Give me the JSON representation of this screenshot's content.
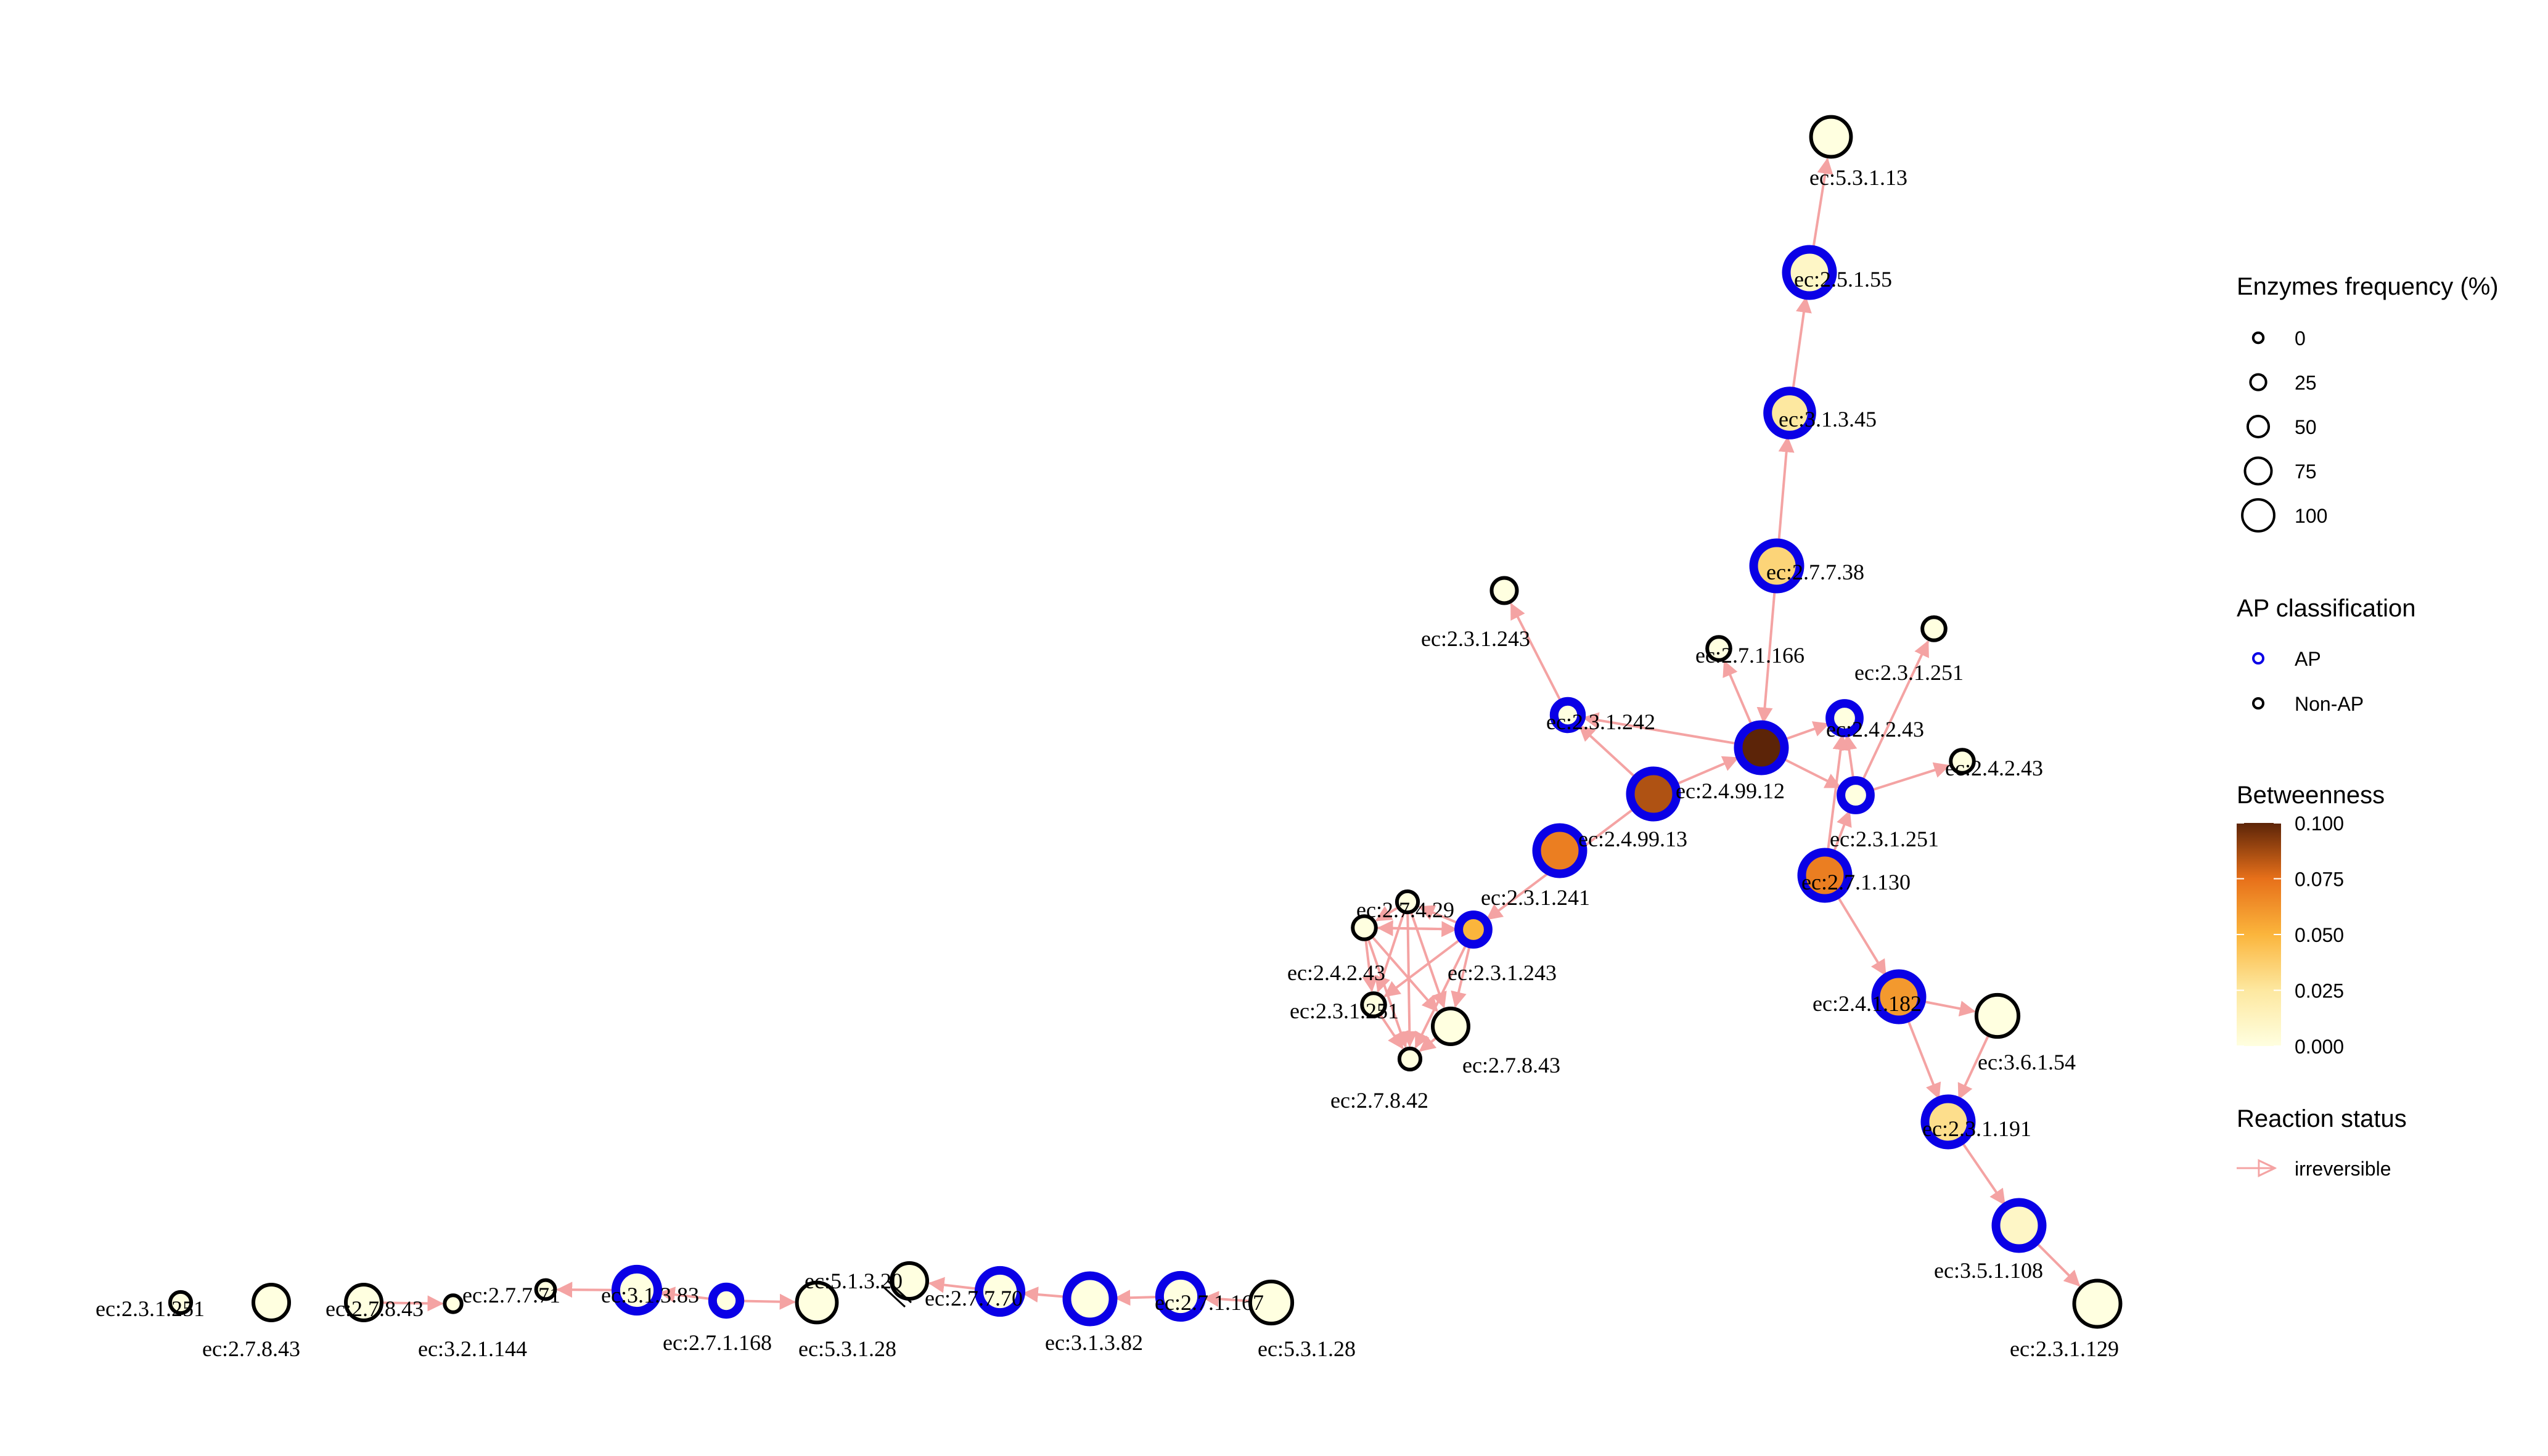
{
  "colors": {
    "edge": "#f4a3a3",
    "ap_border": "#0a00e6",
    "non_ap_border": "#000000",
    "betweenness_low": "#ffffe0",
    "betweenness_mid1": "#fde8a0",
    "betweenness_mid2": "#fbb53c",
    "betweenness_mid3": "#e7701a",
    "betweenness_high": "#5c2408"
  },
  "graph": {
    "nodes": [
      {
        "id": "n01",
        "label": "ec:5.3.1.13",
        "ap": false,
        "freq": 60,
        "betweenness": 0.0
      },
      {
        "id": "n02",
        "label": "ec:2.5.1.55",
        "ap": true,
        "freq": 75,
        "betweenness": 0.01
      },
      {
        "id": "n03",
        "label": "ec:3.1.3.45",
        "ap": true,
        "freq": 70,
        "betweenness": 0.025
      },
      {
        "id": "n04",
        "label": "ec:2.7.7.38",
        "ap": true,
        "freq": 75,
        "betweenness": 0.035
      },
      {
        "id": "n05",
        "label": "ec:2.3.1.243",
        "ap": false,
        "freq": 25,
        "betweenness": 0.0
      },
      {
        "id": "n06",
        "label": "ec:2.7.1.166",
        "ap": false,
        "freq": 20,
        "betweenness": 0.0
      },
      {
        "id": "n07",
        "label": "ec:2.3.1.251",
        "ap": false,
        "freq": 20,
        "betweenness": 0.0
      },
      {
        "id": "n08",
        "label": "ec:2.3.1.242",
        "ap": true,
        "freq": 30,
        "betweenness": 0.0
      },
      {
        "id": "n09",
        "label": "ec:2.4.2.43",
        "ap": true,
        "freq": 35,
        "betweenness": 0.0
      },
      {
        "id": "n10",
        "label": "ec:2.4.99.12",
        "ap": true,
        "freq": 75,
        "betweenness": 0.1
      },
      {
        "id": "n11",
        "label": "ec:2.4.2.43",
        "ap": false,
        "freq": 20,
        "betweenness": 0.0
      },
      {
        "id": "n12",
        "label": "ec:2.4.99.13",
        "ap": true,
        "freq": 75,
        "betweenness": 0.085
      },
      {
        "id": "n13",
        "label": "ec:2.3.1.251",
        "ap": true,
        "freq": 35,
        "betweenness": 0.0
      },
      {
        "id": "n14",
        "label": "ec:2.7.1.130",
        "ap": true,
        "freq": 75,
        "betweenness": 0.07
      },
      {
        "id": "n15",
        "label": "ec:2.3.1.241",
        "ap": true,
        "freq": 75,
        "betweenness": 0.07
      },
      {
        "id": "n16",
        "label": "ec:2.7.4.29",
        "ap": false,
        "freq": 15,
        "betweenness": 0.0
      },
      {
        "id": "n17",
        "label": "ec:2.4.2.43",
        "ap": false,
        "freq": 20,
        "betweenness": 0.0
      },
      {
        "id": "n18",
        "label": "ec:2.3.1.243",
        "ap": true,
        "freq": 35,
        "betweenness": 0.05
      },
      {
        "id": "n19",
        "label": "ec:2.3.1.251",
        "ap": false,
        "freq": 20,
        "betweenness": 0.0
      },
      {
        "id": "n20",
        "label": "ec:2.7.8.43",
        "ap": false,
        "freq": 50,
        "betweenness": 0.0
      },
      {
        "id": "n21",
        "label": "ec:2.7.8.42",
        "ap": false,
        "freq": 15,
        "betweenness": 0.0
      },
      {
        "id": "n22",
        "label": "ec:2.4.1.182",
        "ap": true,
        "freq": 75,
        "betweenness": 0.06
      },
      {
        "id": "n23",
        "label": "ec:3.6.1.54",
        "ap": false,
        "freq": 65,
        "betweenness": 0.0
      },
      {
        "id": "n24",
        "label": "ec:2.3.1.191",
        "ap": true,
        "freq": 75,
        "betweenness": 0.03
      },
      {
        "id": "n25",
        "label": "ec:3.5.1.108",
        "ap": true,
        "freq": 75,
        "betweenness": 0.01
      },
      {
        "id": "n26",
        "label": "ec:2.3.1.129",
        "ap": false,
        "freq": 75,
        "betweenness": 0.0
      },
      {
        "id": "n27",
        "label": "ec:2.3.1.251",
        "ap": false,
        "freq": 15,
        "betweenness": 0.0
      },
      {
        "id": "n28",
        "label": "ec:2.7.8.43",
        "ap": false,
        "freq": 50,
        "betweenness": 0.0
      },
      {
        "id": "n29",
        "label": "ec:2.7.8.43",
        "ap": false,
        "freq": 50,
        "betweenness": 0.0
      },
      {
        "id": "n30",
        "label": "ec:3.2.1.144",
        "ap": false,
        "freq": 5,
        "betweenness": 0.0
      },
      {
        "id": "n31",
        "label": "ec:2.7.7.71",
        "ap": false,
        "freq": 10,
        "betweenness": 0.0
      },
      {
        "id": "n32",
        "label": "ec:3.1.3.83",
        "ap": true,
        "freq": 65,
        "betweenness": 0.0
      },
      {
        "id": "n33",
        "label": "ec:2.7.1.168",
        "ap": true,
        "freq": 30,
        "betweenness": 0.0
      },
      {
        "id": "n34",
        "label": "ec:5.3.1.28",
        "ap": false,
        "freq": 60,
        "betweenness": 0.0
      },
      {
        "id": "n35",
        "label": "ec:5.1.3.20",
        "ap": false,
        "freq": 50,
        "betweenness": 0.0
      },
      {
        "id": "n36",
        "label": "ec:2.7.7.70",
        "ap": true,
        "freq": 65,
        "betweenness": 0.0
      },
      {
        "id": "n37",
        "label": "ec:3.1.3.82",
        "ap": true,
        "freq": 75,
        "betweenness": 0.0
      },
      {
        "id": "n38",
        "label": "ec:2.7.1.167",
        "ap": true,
        "freq": 65,
        "betweenness": 0.0
      },
      {
        "id": "n39",
        "label": "ec:5.3.1.28",
        "ap": false,
        "freq": 65,
        "betweenness": 0.0
      }
    ],
    "edges": [
      {
        "from": "n02",
        "to": "n01"
      },
      {
        "from": "n03",
        "to": "n02"
      },
      {
        "from": "n04",
        "to": "n03"
      },
      {
        "from": "n04",
        "to": "n10"
      },
      {
        "from": "n10",
        "to": "n06"
      },
      {
        "from": "n10",
        "to": "n09"
      },
      {
        "from": "n10",
        "to": "n08"
      },
      {
        "from": "n10",
        "to": "n13"
      },
      {
        "from": "n13",
        "to": "n07"
      },
      {
        "from": "n13",
        "to": "n11"
      },
      {
        "from": "n13",
        "to": "n09"
      },
      {
        "from": "n14",
        "to": "n09"
      },
      {
        "from": "n14",
        "to": "n13"
      },
      {
        "from": "n12",
        "to": "n10"
      },
      {
        "from": "n12",
        "to": "n08"
      },
      {
        "from": "n08",
        "to": "n05"
      },
      {
        "from": "n12",
        "to": "n18"
      },
      {
        "from": "n14",
        "to": "n22"
      },
      {
        "from": "n22",
        "to": "n23"
      },
      {
        "from": "n22",
        "to": "n24"
      },
      {
        "from": "n23",
        "to": "n24"
      },
      {
        "from": "n24",
        "to": "n25"
      },
      {
        "from": "n25",
        "to": "n26"
      },
      {
        "from": "n18",
        "to": "n16"
      },
      {
        "from": "n18",
        "to": "n17"
      },
      {
        "from": "n18",
        "to": "n19"
      },
      {
        "from": "n18",
        "to": "n20"
      },
      {
        "from": "n18",
        "to": "n21"
      },
      {
        "from": "n16",
        "to": "n19"
      },
      {
        "from": "n16",
        "to": "n20"
      },
      {
        "from": "n16",
        "to": "n21"
      },
      {
        "from": "n17",
        "to": "n18"
      },
      {
        "from": "n17",
        "to": "n19"
      },
      {
        "from": "n17",
        "to": "n20"
      },
      {
        "from": "n17",
        "to": "n21"
      },
      {
        "from": "n19",
        "to": "n21"
      },
      {
        "from": "n20",
        "to": "n21"
      },
      {
        "from": "n16",
        "to": "n17"
      },
      {
        "from": "n29",
        "to": "n30"
      },
      {
        "from": "n32",
        "to": "n31"
      },
      {
        "from": "n33",
        "to": "n32"
      },
      {
        "from": "n33",
        "to": "n34"
      },
      {
        "from": "n36",
        "to": "n35"
      },
      {
        "from": "n37",
        "to": "n36"
      },
      {
        "from": "n38",
        "to": "n37"
      },
      {
        "from": "n39",
        "to": "n38"
      }
    ]
  },
  "legend": {
    "frequency": {
      "title": "Enzymes frequency (%)",
      "items": [
        {
          "label": "0",
          "value": 0
        },
        {
          "label": "25",
          "value": 25
        },
        {
          "label": "50",
          "value": 50
        },
        {
          "label": "75",
          "value": 75
        },
        {
          "label": "100",
          "value": 100
        }
      ]
    },
    "ap": {
      "title": "AP classification",
      "items": [
        {
          "label": "AP",
          "ap": true
        },
        {
          "label": "Non-AP",
          "ap": false
        }
      ]
    },
    "betweenness": {
      "title": "Betweenness",
      "ticks": [
        {
          "label": "0.100",
          "value": 0.1
        },
        {
          "label": "0.075",
          "value": 0.075
        },
        {
          "label": "0.050",
          "value": 0.05
        },
        {
          "label": "0.025",
          "value": 0.025
        },
        {
          "label": "0.000",
          "value": 0.0
        }
      ],
      "min": 0.0,
      "max": 0.1
    },
    "reaction": {
      "title": "Reaction status",
      "items": [
        {
          "label": "irreversible"
        }
      ]
    }
  }
}
